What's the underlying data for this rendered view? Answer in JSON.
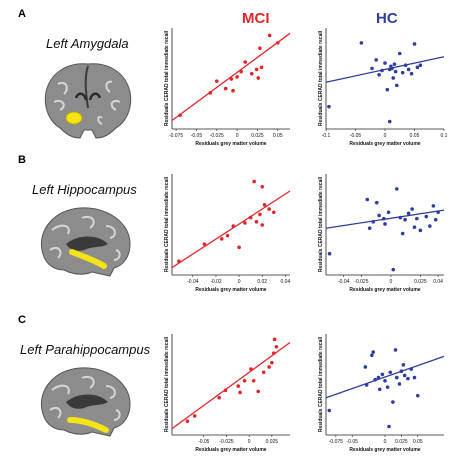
{
  "groups": {
    "mci": "MCI",
    "hc": "HC"
  },
  "colors": {
    "mci": "#e3262b",
    "hc": "#2f3f9e",
    "highlight": "#f3e317"
  },
  "panels": [
    {
      "letter": "A",
      "region": "Left Amygdala",
      "brain_icon": "brain-coronal-amygdala-icon"
    },
    {
      "letter": "B",
      "region": "Left Hippocampus",
      "brain_icon": "brain-sagittal-hippocampus-icon"
    },
    {
      "letter": "C",
      "region": "Left Parahippocampus",
      "brain_icon": "brain-sagittal-parahippocampus-icon"
    }
  ],
  "chart_data": [
    {
      "id": "A-MCI",
      "type": "scatter",
      "group": "MCI",
      "xlabel": "Residuals grey matter volume",
      "ylabel": "Residuals CERAD total immediate recall",
      "xlim": [
        -0.08,
        0.065
      ],
      "ylim": [
        -5,
        4.5
      ],
      "xticks": [
        {
          "v": -0.075,
          "t": "-0.075"
        },
        {
          "v": -0.05,
          "t": "-0.05"
        },
        {
          "v": -0.025,
          "t": "-0.025"
        },
        {
          "v": 0,
          "t": "0"
        },
        {
          "v": 0.025,
          "t": "0.025"
        },
        {
          "v": 0.05,
          "t": "0.05"
        }
      ],
      "points": [
        [
          -0.07,
          -3.7
        ],
        [
          -0.033,
          -1.6
        ],
        [
          -0.025,
          -0.5
        ],
        [
          -0.014,
          -1.2
        ],
        [
          -0.005,
          -1.4
        ],
        [
          -0.007,
          -0.3
        ],
        [
          0.0,
          -0.1
        ],
        [
          0.005,
          0.4
        ],
        [
          0.01,
          1.3
        ],
        [
          0.018,
          0.2
        ],
        [
          0.024,
          0.6
        ],
        [
          0.026,
          -0.2
        ],
        [
          0.03,
          0.8
        ],
        [
          0.028,
          2.6
        ],
        [
          0.04,
          3.8
        ],
        [
          0.05,
          3.1
        ]
      ],
      "fit": [
        [
          -0.08,
          -4.2
        ],
        [
          0.065,
          4.0
        ]
      ]
    },
    {
      "id": "A-HC",
      "type": "scatter",
      "group": "HC",
      "xlabel": "Residuals grey matter volume",
      "ylabel": "Residuals CERAD total immediate recall",
      "xlim": [
        -0.1,
        0.1
      ],
      "ylim": [
        -5,
        4.5
      ],
      "xticks": [
        {
          "v": -0.1,
          "t": "-0.1"
        },
        {
          "v": -0.05,
          "t": "-0.05"
        },
        {
          "v": 0,
          "t": "0"
        },
        {
          "v": 0.05,
          "t": "0.05"
        },
        {
          "v": 0.1,
          "t": "0.1"
        }
      ],
      "points": [
        [
          -0.095,
          -2.9
        ],
        [
          -0.04,
          3.1
        ],
        [
          -0.022,
          0.7
        ],
        [
          -0.015,
          1.5
        ],
        [
          -0.01,
          0.1
        ],
        [
          -0.005,
          0.5
        ],
        [
          0.0,
          1.2
        ],
        [
          0.004,
          -1.3
        ],
        [
          0.008,
          0.6
        ],
        [
          0.01,
          0.9
        ],
        [
          0.014,
          -0.2
        ],
        [
          0.018,
          0.4
        ],
        [
          0.025,
          2.1
        ],
        [
          0.03,
          0.3
        ],
        [
          0.035,
          1.0
        ],
        [
          0.04,
          0.6
        ],
        [
          0.045,
          0.2
        ],
        [
          0.05,
          3.0
        ],
        [
          0.055,
          0.8
        ],
        [
          0.06,
          1.0
        ],
        [
          0.02,
          -0.9
        ],
        [
          0.008,
          -4.3
        ],
        [
          0.012,
          0.7
        ],
        [
          0.016,
          1.1
        ]
      ],
      "fit": [
        [
          -0.1,
          -0.6
        ],
        [
          0.1,
          1.8
        ]
      ]
    },
    {
      "id": "B-MCI",
      "type": "scatter",
      "group": "MCI",
      "xlabel": "Residuals grey matter volume",
      "ylabel": "Residuals CERAD total immediate recall",
      "xlim": [
        -0.058,
        0.044
      ],
      "ylim": [
        -5,
        4.5
      ],
      "xticks": [
        {
          "v": -0.04,
          "t": "-0.04"
        },
        {
          "v": -0.02,
          "t": "-0.02"
        },
        {
          "v": 0,
          "t": "0"
        },
        {
          "v": 0.02,
          "t": "0.02"
        },
        {
          "v": 0.04,
          "t": "0.04"
        }
      ],
      "points": [
        [
          -0.052,
          -3.7
        ],
        [
          -0.03,
          -2.1
        ],
        [
          -0.015,
          -1.6
        ],
        [
          -0.01,
          -1.3
        ],
        [
          -0.005,
          -0.4
        ],
        [
          0.0,
          -2.4
        ],
        [
          0.005,
          -0.1
        ],
        [
          0.01,
          0.4
        ],
        [
          0.013,
          3.8
        ],
        [
          0.015,
          0.0
        ],
        [
          0.018,
          0.7
        ],
        [
          0.02,
          -0.3
        ],
        [
          0.022,
          1.6
        ],
        [
          0.026,
          1.2
        ],
        [
          0.03,
          0.9
        ],
        [
          0.02,
          3.3
        ]
      ],
      "fit": [
        [
          -0.058,
          -4.3
        ],
        [
          0.044,
          2.9
        ]
      ]
    },
    {
      "id": "B-HC",
      "type": "scatter",
      "group": "HC",
      "xlabel": "Residuals grey matter volume",
      "ylabel": "Residuals CERAD total immediate recall",
      "xlim": [
        -0.055,
        0.045
      ],
      "ylim": [
        -5,
        4.5
      ],
      "xticks": [
        {
          "v": -0.04,
          "t": "-0.04"
        },
        {
          "v": -0.025,
          "t": "-0.025"
        },
        {
          "v": 0,
          "t": "0"
        },
        {
          "v": 0.025,
          "t": "0.025"
        },
        {
          "v": 0.04,
          "t": "0.04"
        }
      ],
      "points": [
        [
          -0.052,
          -3.0
        ],
        [
          -0.02,
          2.1
        ],
        [
          -0.018,
          -0.6
        ],
        [
          -0.015,
          0.0
        ],
        [
          -0.012,
          1.8
        ],
        [
          -0.01,
          0.6
        ],
        [
          -0.006,
          0.3
        ],
        [
          -0.002,
          0.9
        ],
        [
          0.002,
          -4.5
        ],
        [
          0.005,
          3.1
        ],
        [
          0.008,
          0.4
        ],
        [
          0.012,
          0.2
        ],
        [
          0.015,
          0.8
        ],
        [
          0.018,
          1.2
        ],
        [
          0.022,
          0.3
        ],
        [
          0.025,
          -0.8
        ],
        [
          0.03,
          0.5
        ],
        [
          0.033,
          -0.4
        ],
        [
          0.036,
          1.5
        ],
        [
          0.038,
          0.2
        ],
        [
          0.04,
          0.9
        ],
        [
          0.02,
          -0.5
        ],
        [
          0.01,
          -1.1
        ],
        [
          -0.005,
          -0.2
        ]
      ],
      "fit": [
        [
          -0.055,
          -0.6
        ],
        [
          0.045,
          1.1
        ]
      ]
    },
    {
      "id": "C-MCI",
      "type": "scatter",
      "group": "MCI",
      "xlabel": "Residuals grey matter volume",
      "ylabel": "Residuals CERAD total immediate recall",
      "xlim": [
        -0.085,
        0.045
      ],
      "ylim": [
        -5,
        4.5
      ],
      "xticks": [
        {
          "v": -0.05,
          "t": "-0.05"
        },
        {
          "v": -0.025,
          "t": "-0.025"
        },
        {
          "v": 0,
          "t": "0"
        },
        {
          "v": 0.025,
          "t": "0.025"
        }
      ],
      "points": [
        [
          -0.068,
          -3.7
        ],
        [
          -0.06,
          -3.2
        ],
        [
          -0.033,
          -1.5
        ],
        [
          -0.026,
          -0.8
        ],
        [
          -0.012,
          -0.4
        ],
        [
          -0.01,
          -1.0
        ],
        [
          -0.005,
          0.1
        ],
        [
          0.002,
          1.2
        ],
        [
          0.005,
          0.1
        ],
        [
          0.01,
          -0.9
        ],
        [
          0.016,
          0.9
        ],
        [
          0.022,
          1.4
        ],
        [
          0.025,
          1.8
        ],
        [
          0.028,
          4.0
        ],
        [
          0.03,
          3.3
        ],
        [
          0.027,
          2.7
        ]
      ],
      "fit": [
        [
          -0.085,
          -4.4
        ],
        [
          0.045,
          3.7
        ]
      ]
    },
    {
      "id": "C-HC",
      "type": "scatter",
      "group": "HC",
      "xlabel": "Residuals grey matter volume",
      "ylabel": "Residuals CERAD total immediate recall",
      "xlim": [
        -0.09,
        0.09
      ],
      "ylim": [
        -5,
        4.5
      ],
      "xticks": [
        {
          "v": -0.075,
          "t": "-0.075"
        },
        {
          "v": -0.05,
          "t": "-0.05"
        },
        {
          "v": 0,
          "t": "0"
        },
        {
          "v": 0.025,
          "t": "0.025"
        },
        {
          "v": 0.05,
          "t": "0.05"
        }
      ],
      "points": [
        [
          -0.085,
          -2.7
        ],
        [
          -0.03,
          1.4
        ],
        [
          -0.028,
          -0.3
        ],
        [
          -0.02,
          2.5
        ],
        [
          -0.015,
          0.2
        ],
        [
          -0.01,
          0.4
        ],
        [
          -0.008,
          -0.7
        ],
        [
          -0.004,
          0.7
        ],
        [
          0.0,
          0.1
        ],
        [
          0.004,
          -0.5
        ],
        [
          0.008,
          0.9
        ],
        [
          0.012,
          -1.9
        ],
        [
          0.016,
          3.0
        ],
        [
          0.018,
          0.4
        ],
        [
          0.022,
          -0.2
        ],
        [
          0.025,
          1.0
        ],
        [
          0.028,
          1.6
        ],
        [
          0.03,
          0.6
        ],
        [
          0.035,
          0.3
        ],
        [
          0.04,
          1.2
        ],
        [
          0.045,
          0.4
        ],
        [
          0.05,
          -1.3
        ],
        [
          0.006,
          -4.2
        ],
        [
          -0.018,
          2.8
        ]
      ],
      "fit": [
        [
          -0.09,
          -1.5
        ],
        [
          0.09,
          2.4
        ]
      ]
    }
  ]
}
